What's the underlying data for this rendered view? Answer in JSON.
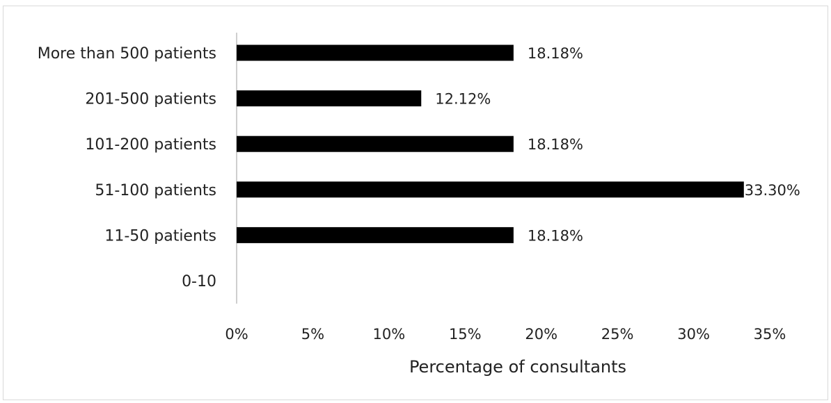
{
  "chart_data": {
    "type": "bar",
    "orientation": "horizontal",
    "categories": [
      "0-10",
      "11-50 patients",
      "51-100 patients",
      "101-200 patients",
      "201-500 patients",
      "More than 500 patients"
    ],
    "values": [
      null,
      18.18,
      33.3,
      18.18,
      12.12,
      18.18
    ],
    "data_labels": [
      "",
      "18.18%",
      "33.30%",
      "18.18%",
      "12.12%",
      "18.18%"
    ],
    "xlabel": "Percentage of consultants",
    "ylabel": "",
    "xlim": [
      0,
      35
    ],
    "x_ticks": [
      0,
      5,
      10,
      15,
      20,
      25,
      30,
      35
    ],
    "x_tick_labels": [
      "0%",
      "5%",
      "10%",
      "15%",
      "20%",
      "25%",
      "30%",
      "35%"
    ],
    "grid": false,
    "legend": "none",
    "colors": {
      "bar": "#000000",
      "axis": "#bfbfbf",
      "border": "#d9d9d9",
      "text": "#222222"
    }
  }
}
